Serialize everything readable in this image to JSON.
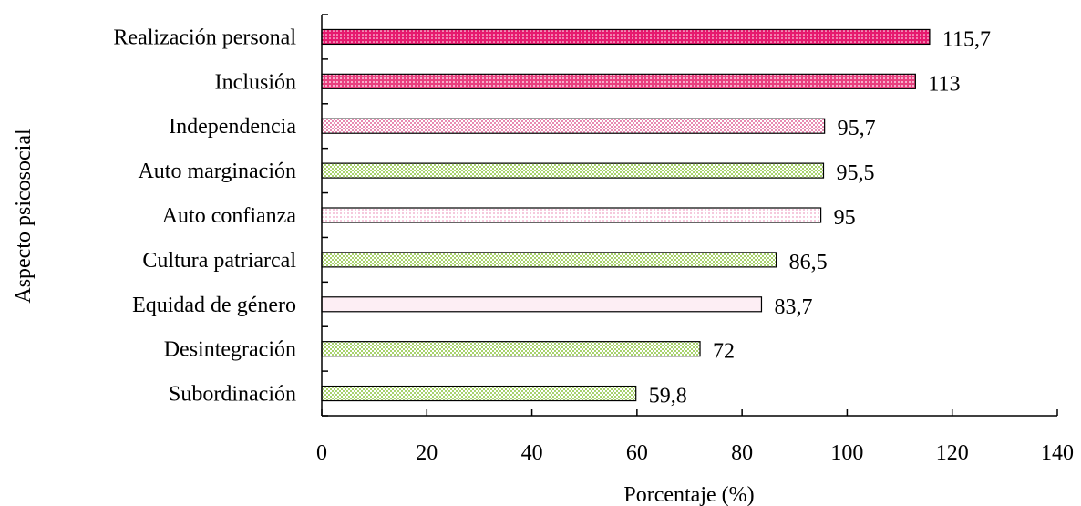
{
  "chart_data": {
    "type": "bar",
    "orientation": "horizontal",
    "categories": [
      "Realización personal",
      "Inclusión",
      "Independencia",
      "Auto marginación",
      "Auto confianza",
      "Cultura patriarcal",
      "Equidad de género",
      "Desintegración",
      "Subordinación"
    ],
    "values": [
      115.7,
      113,
      95.7,
      95.5,
      95,
      86.5,
      83.7,
      72,
      59.8
    ],
    "value_labels": [
      "115,7",
      "113",
      "95,7",
      "95,5",
      "95",
      "86,5",
      "83,7",
      "72",
      "59,8"
    ],
    "bar_colors": [
      "#e6196e",
      "#e8407f",
      "#e88ab2",
      "#a8d26c",
      "#f2b8d2",
      "#a8d26c",
      "#f9dbe8",
      "#a8d26c",
      "#a8d26c"
    ],
    "bar_patterns": [
      "dots",
      "dots",
      "checker",
      "checker",
      "dots",
      "checker",
      "plain",
      "checker",
      "checker"
    ],
    "xlabel": "Porcentaje (%)",
    "ylabel": "Aspecto psicosocial",
    "xlim": [
      0,
      140
    ],
    "xticks": [
      0,
      20,
      40,
      60,
      80,
      100,
      120,
      140
    ],
    "grid": false,
    "legend": "none"
  }
}
